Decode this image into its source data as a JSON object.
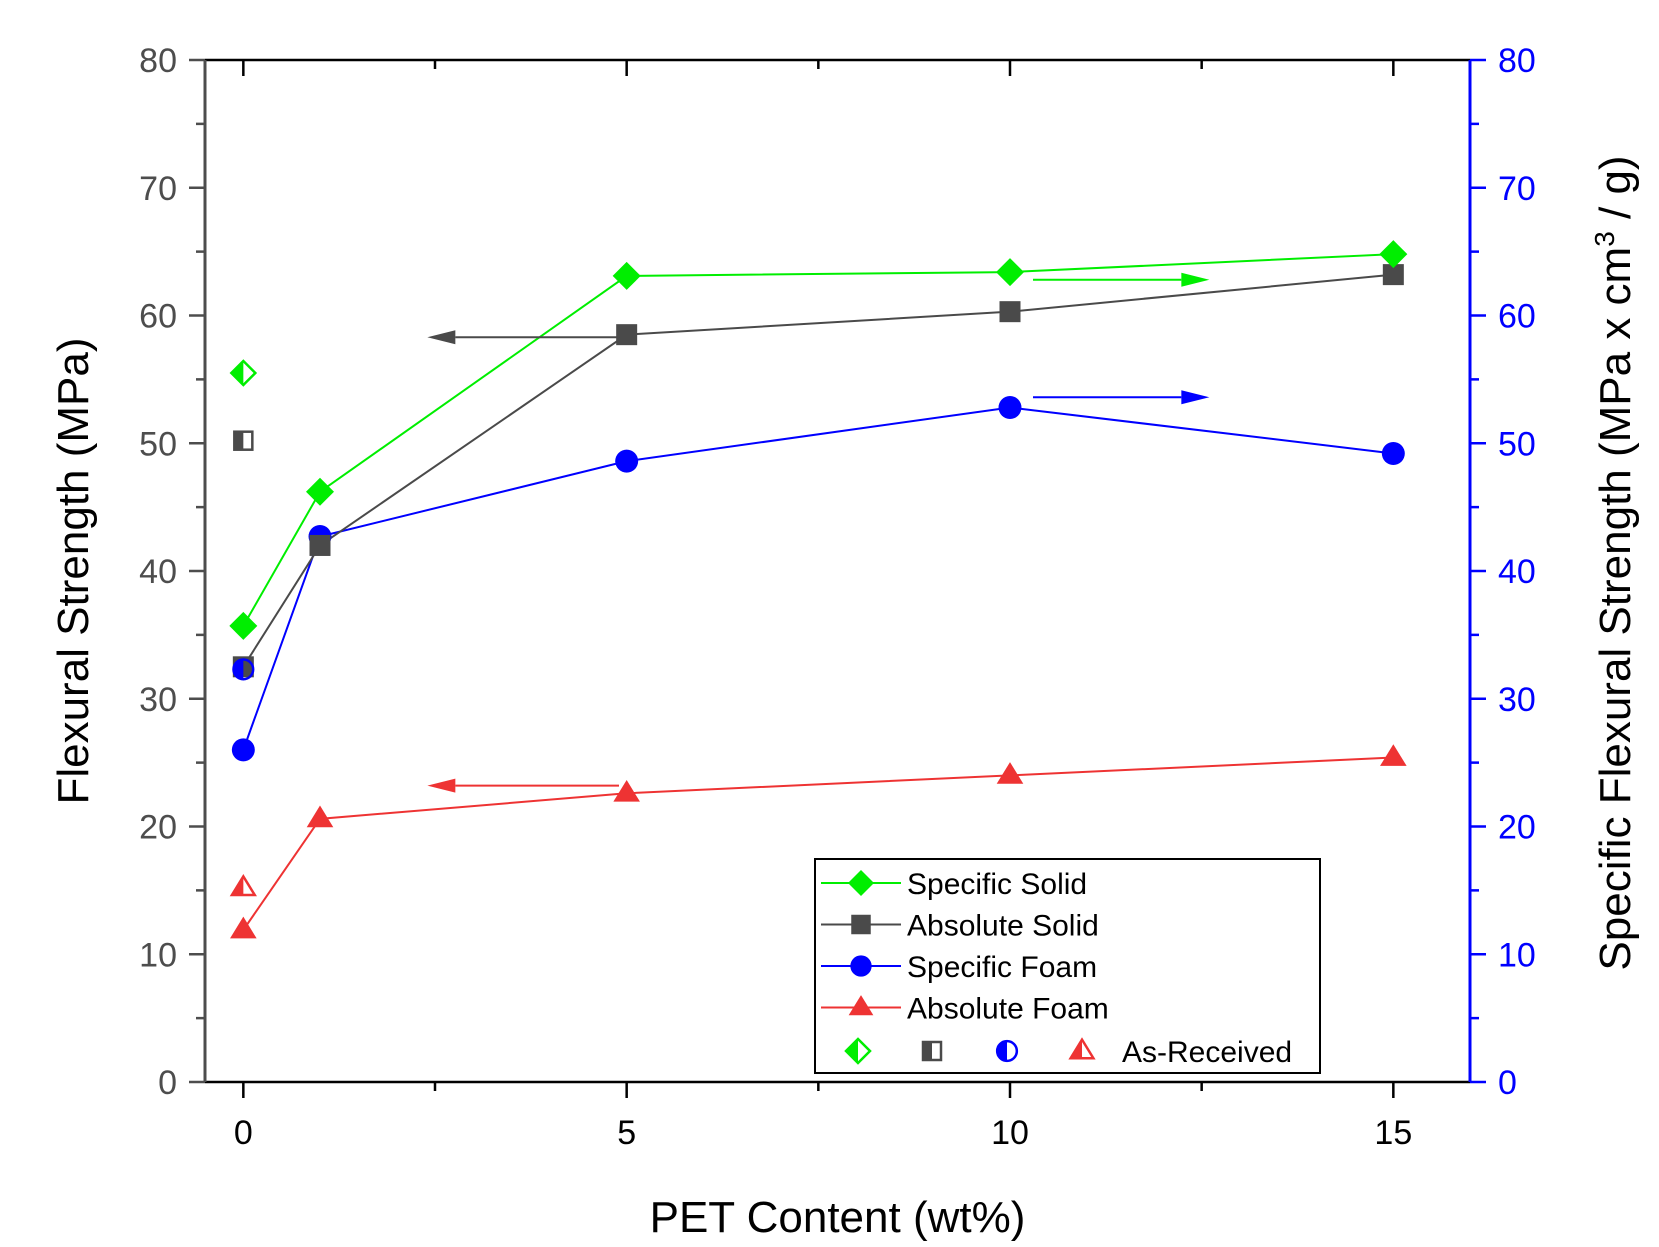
{
  "chart_data": {
    "type": "line",
    "xlabel": "PET Content (wt%)",
    "ylabel_left": "Flexural Strength (MPa)",
    "ylabel_right": "Specific Flexural Strength  (MPa x cm³ / g)",
    "ylabel_right_parts": {
      "before": "Specific Flexural Strength  (MPa x cm",
      "sup": "3",
      "after": " / g)"
    },
    "xlim": [
      -0.5,
      16
    ],
    "ylim_left": [
      0,
      80
    ],
    "ylim_right": [
      0,
      80
    ],
    "x_ticks": [
      0,
      5,
      10,
      15
    ],
    "x_tick_labels": [
      "0",
      "5",
      "10",
      "15"
    ],
    "y_ticks": [
      0,
      10,
      20,
      30,
      40,
      50,
      60,
      70,
      80
    ],
    "y_tick_labels": [
      "0",
      "10",
      "20",
      "30",
      "40",
      "50",
      "60",
      "70",
      "80"
    ],
    "colors": {
      "left_axis": "#4d4d4d",
      "right_axis": "#0000ff",
      "specific_solid": "#00ee00",
      "absolute_solid": "#4a4a4a",
      "specific_foam": "#0000ff",
      "absolute_foam": "#ee3333"
    },
    "series": [
      {
        "name": "Specific Solid",
        "key": "specific_solid",
        "marker": "diamond",
        "axis": "right",
        "x": [
          0,
          1,
          5,
          10,
          15
        ],
        "values": [
          35.7,
          46.2,
          63.1,
          63.4,
          64.8
        ]
      },
      {
        "name": "Absolute Solid",
        "key": "absolute_solid",
        "marker": "square",
        "axis": "left",
        "x": [
          0,
          1,
          5,
          10,
          15
        ],
        "values": [
          32.5,
          42.0,
          58.5,
          60.3,
          63.2
        ]
      },
      {
        "name": "Specific Foam",
        "key": "specific_foam",
        "marker": "circle",
        "axis": "right",
        "x": [
          0,
          1,
          5,
          10,
          15
        ],
        "values": [
          26.0,
          42.7,
          48.6,
          52.8,
          49.2
        ]
      },
      {
        "name": "Absolute Foam",
        "key": "absolute_foam",
        "marker": "triangle",
        "axis": "left",
        "x": [
          0,
          1,
          5,
          10,
          15
        ],
        "values": [
          11.9,
          20.6,
          22.6,
          24.0,
          25.4
        ]
      }
    ],
    "as_received": [
      {
        "key": "specific_solid",
        "marker": "diamond",
        "x": 0,
        "value": 55.5
      },
      {
        "key": "absolute_solid",
        "marker": "square",
        "x": 0,
        "value": 50.2
      },
      {
        "key": "specific_foam",
        "marker": "circle",
        "x": 0,
        "value": 32.3
      },
      {
        "key": "absolute_foam",
        "marker": "triangle",
        "x": 0,
        "value": 15.2
      }
    ],
    "as_received_label": "As-Received",
    "axis_arrows": [
      {
        "key": "absolute_solid",
        "direction": "left",
        "y": 58.3,
        "x_from": 4.9,
        "x_to": 2.4
      },
      {
        "key": "specific_solid",
        "direction": "right",
        "y": 62.8,
        "x_from": 10.3,
        "x_to": 12.6
      },
      {
        "key": "specific_foam",
        "direction": "right",
        "y": 53.6,
        "x_from": 10.3,
        "x_to": 12.6
      },
      {
        "key": "absolute_foam",
        "direction": "left",
        "y": 23.2,
        "x_from": 4.9,
        "x_to": 2.4
      }
    ],
    "legend_position": "bottom-right",
    "grid": false
  }
}
